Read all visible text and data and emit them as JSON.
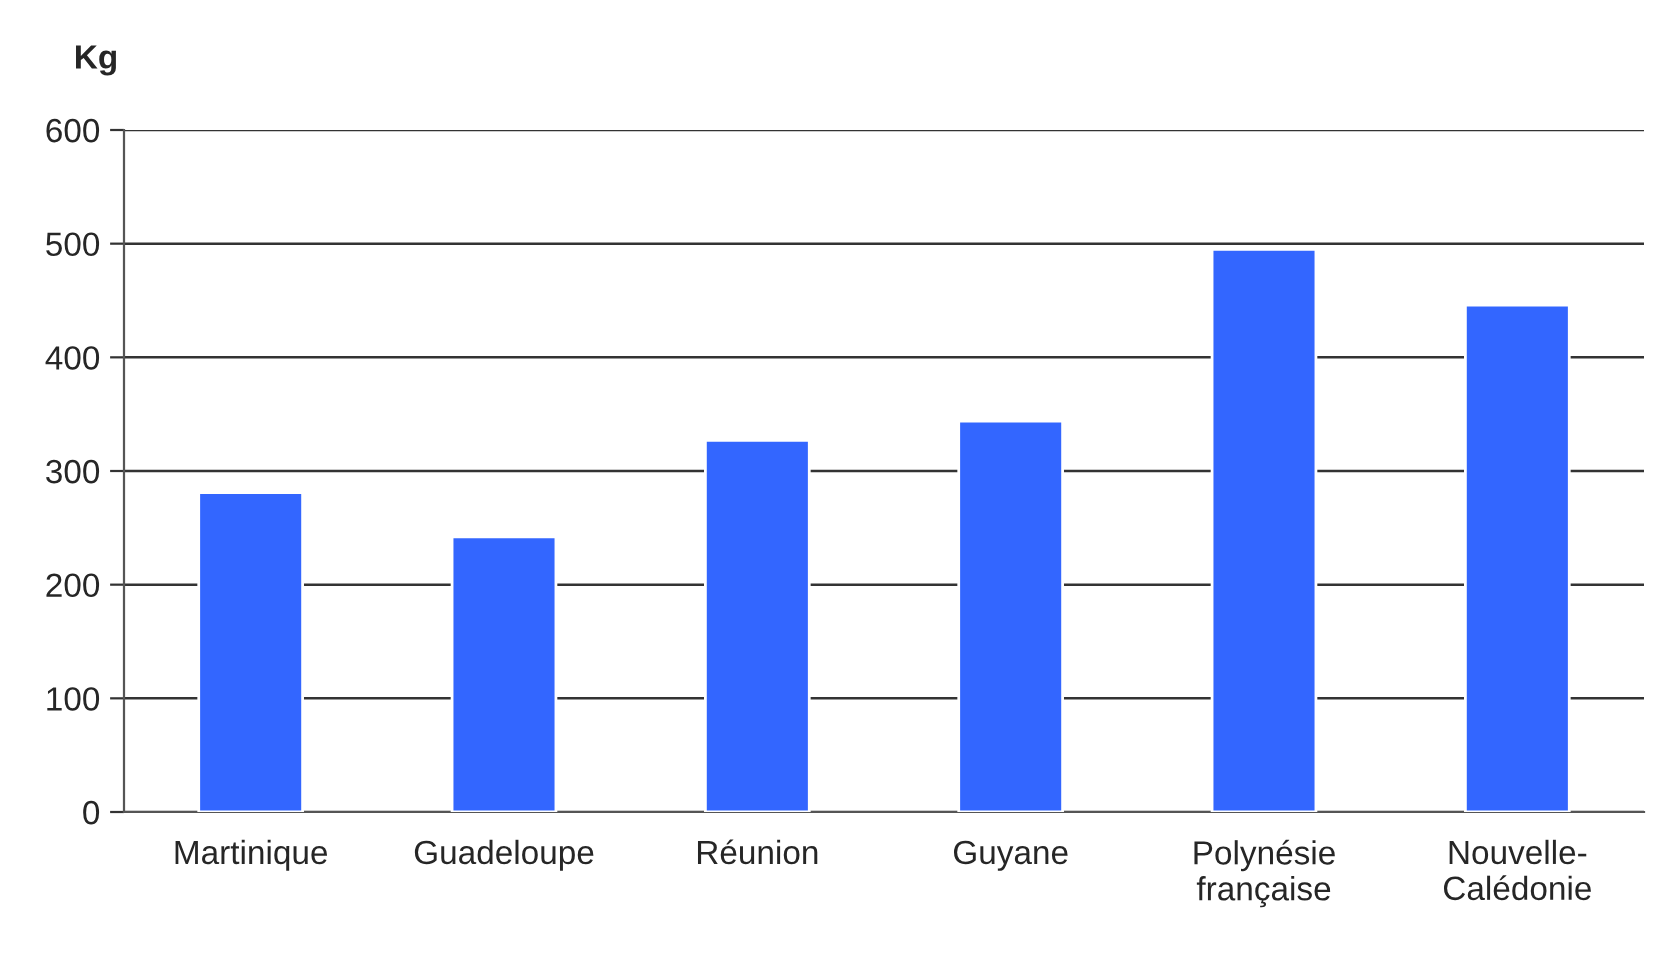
{
  "chart_data": {
    "type": "bar",
    "ylabel": "Kg",
    "categories": [
      "Martinique",
      "Guadeloupe",
      "Réunion",
      "Guyane",
      "Polynésie\nfrançaise",
      "Nouvelle-\nCalédonie"
    ],
    "values": [
      281,
      242,
      327,
      344,
      495,
      446
    ],
    "color": "#3366ff",
    "ylim": [
      0,
      600
    ],
    "yticks": [
      0,
      100,
      200,
      300,
      400,
      500,
      600
    ],
    "grid": "y"
  }
}
